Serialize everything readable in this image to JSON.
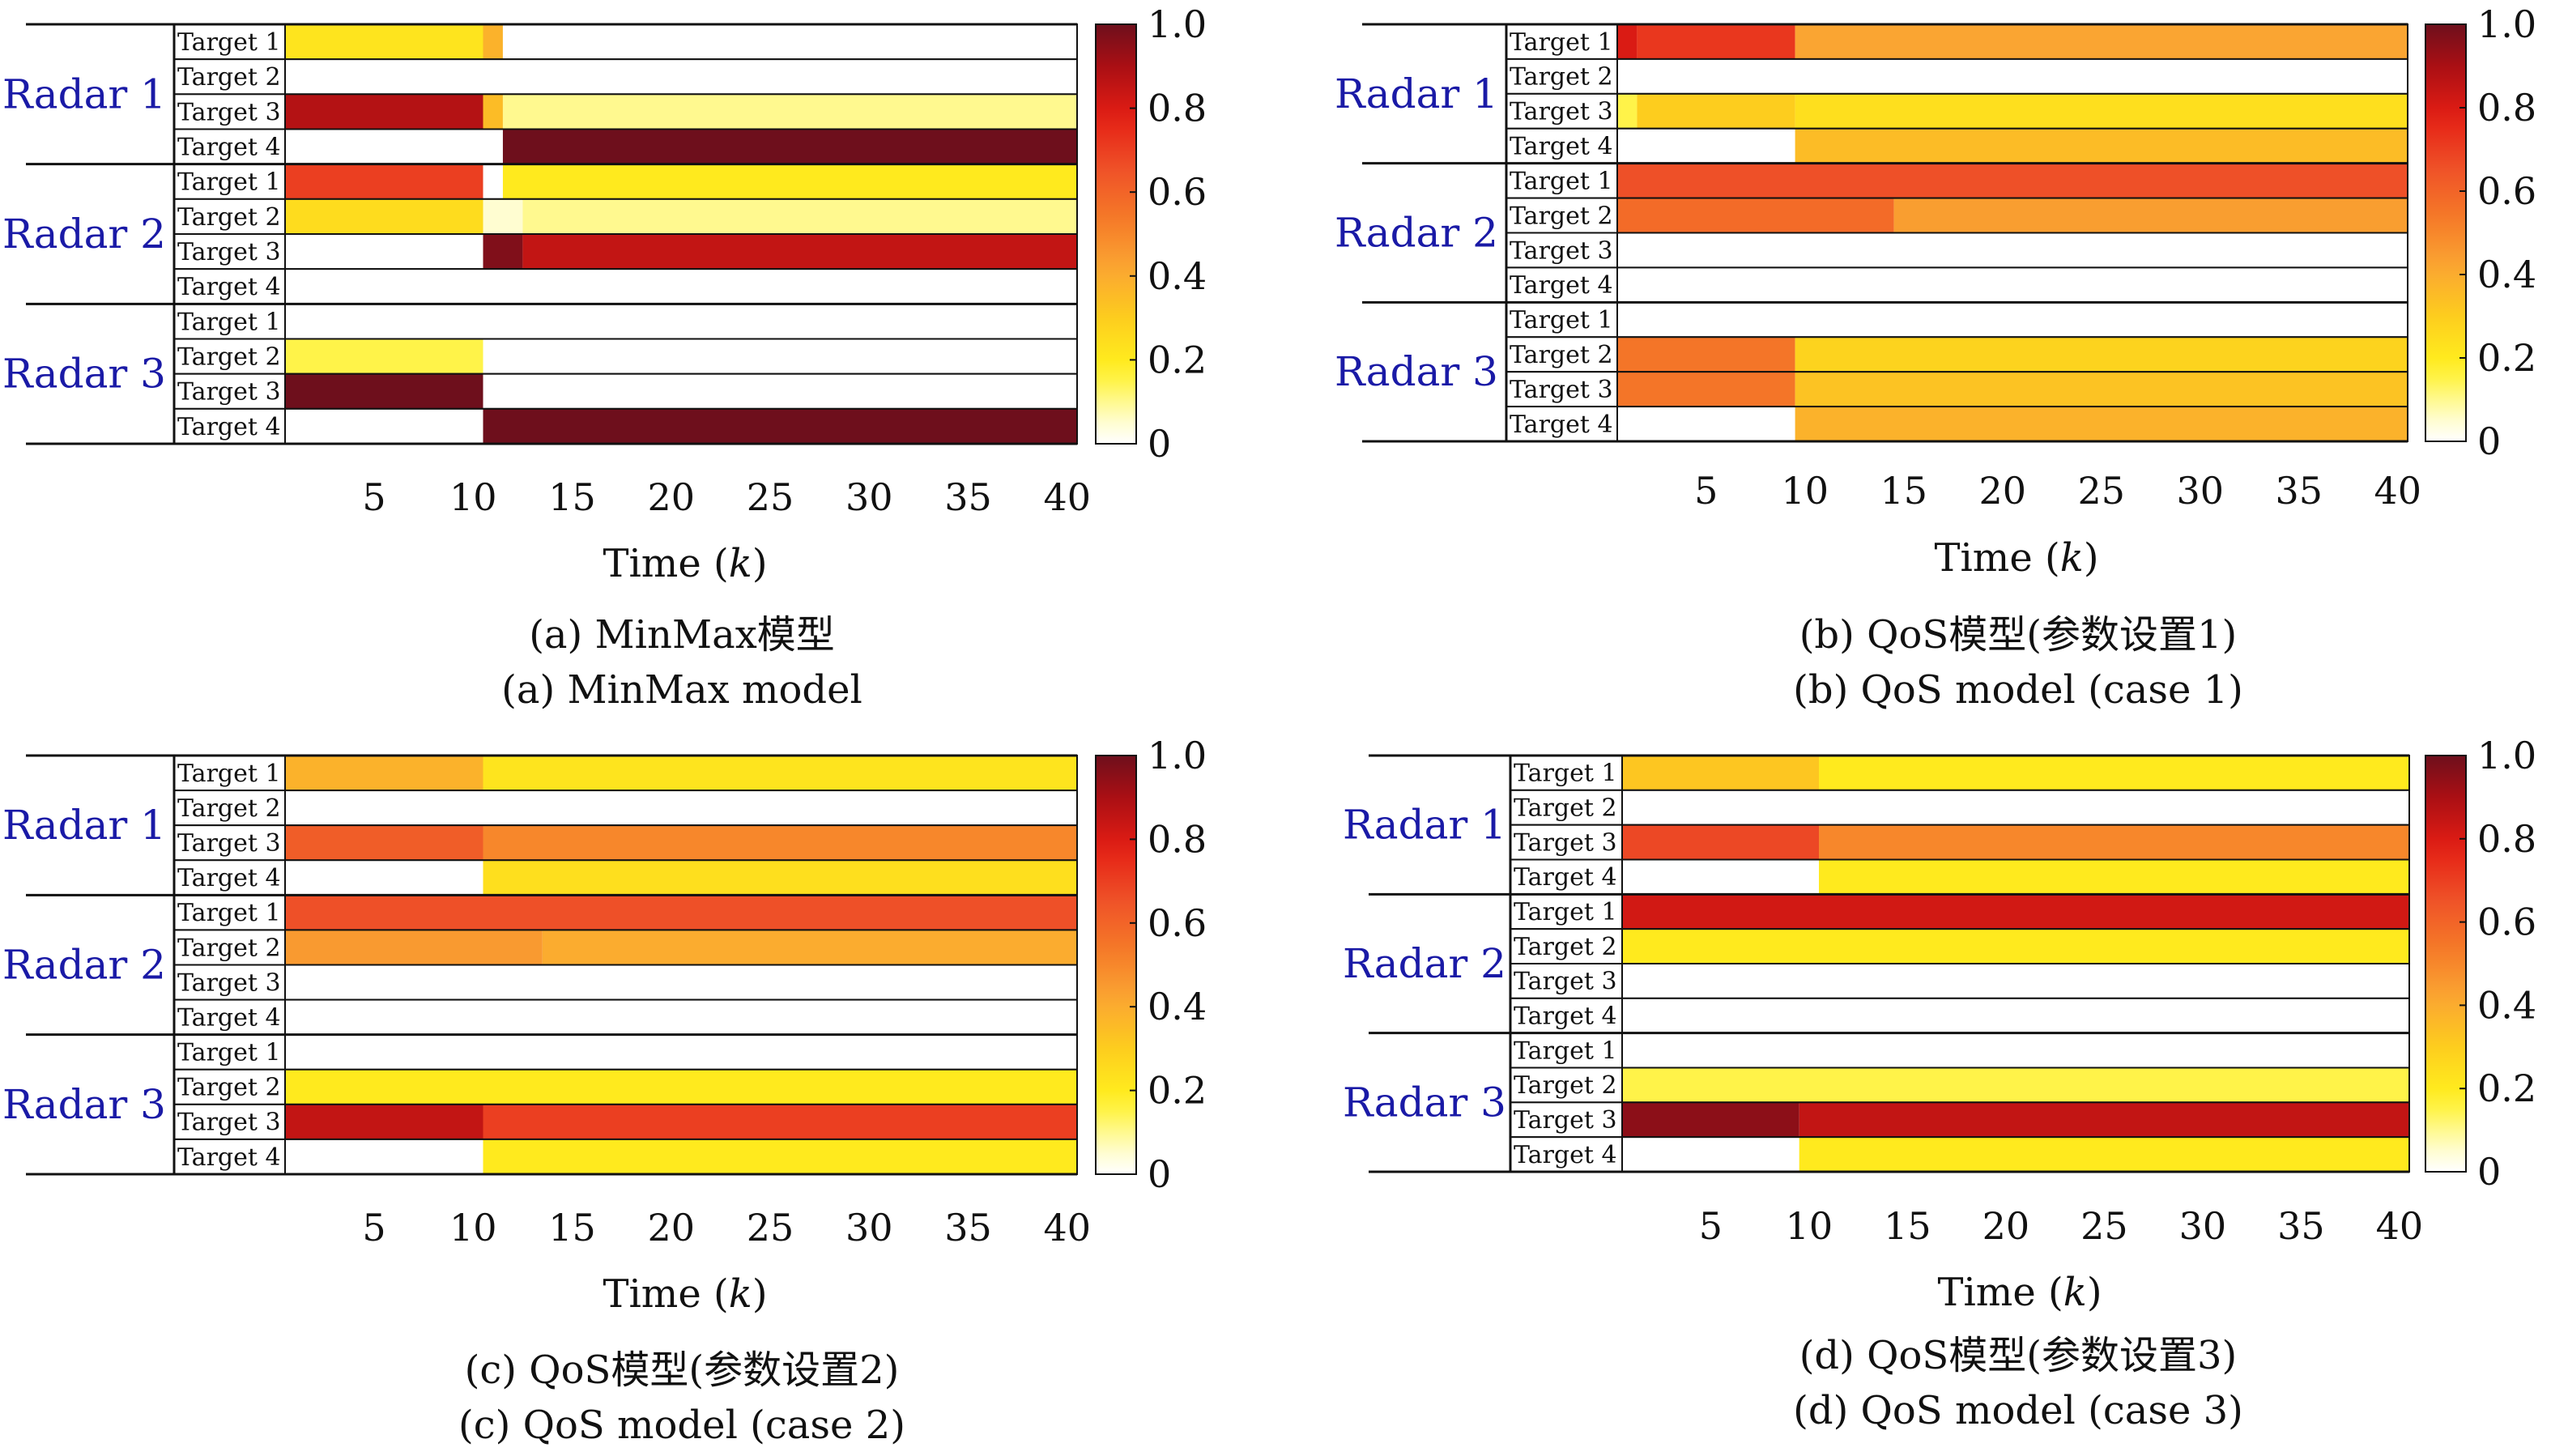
{
  "chart_data": [
    {
      "type": "heatmap",
      "id": "a",
      "caption_cn": "(a) MinMax模型",
      "caption_en": "(a) MinMax model",
      "xlabel_prefix": "Time (",
      "xlabel_var": "k",
      "xlabel_suffix": ")",
      "xlim": [
        1,
        40
      ],
      "xticks": [
        5,
        10,
        15,
        20,
        25,
        30,
        35,
        40
      ],
      "xtick_labels": [
        "5",
        "10",
        "15",
        "20",
        "25",
        "30",
        "35",
        "40"
      ],
      "colorbar": {
        "min": 0,
        "max": 1,
        "ticks": [
          "0",
          "0.2",
          "0.4",
          "0.6",
          "0.8",
          "1.0"
        ]
      },
      "radars": [
        {
          "name": "Radar 1",
          "targets": [
            {
              "name": "Target 1",
              "segments": [
                [
                  1,
                  10,
                  0.22
                ],
                [
                  11,
                  11,
                  0.38
                ],
                [
                  12,
                  40,
                  0
                ]
              ]
            },
            {
              "name": "Target 2",
              "segments": [
                [
                  1,
                  40,
                  0
                ]
              ]
            },
            {
              "name": "Target 3",
              "segments": [
                [
                  1,
                  10,
                  0.88
                ],
                [
                  11,
                  11,
                  0.35
                ],
                [
                  12,
                  40,
                  0.1
                ]
              ]
            },
            {
              "name": "Target 4",
              "segments": [
                [
                  1,
                  11,
                  0
                ],
                [
                  12,
                  40,
                  1.0
                ]
              ]
            }
          ]
        },
        {
          "name": "Radar 2",
          "targets": [
            {
              "name": "Target 1",
              "segments": [
                [
                  1,
                  10,
                  0.7
                ],
                [
                  11,
                  11,
                  0
                ],
                [
                  12,
                  40,
                  0.2
                ]
              ]
            },
            {
              "name": "Target 2",
              "segments": [
                [
                  1,
                  10,
                  0.25
                ],
                [
                  11,
                  12,
                  0.05
                ],
                [
                  13,
                  40,
                  0.1
                ]
              ]
            },
            {
              "name": "Target 3",
              "segments": [
                [
                  1,
                  10,
                  0
                ],
                [
                  11,
                  12,
                  0.97
                ],
                [
                  13,
                  40,
                  0.85
                ]
              ]
            },
            {
              "name": "Target 4",
              "segments": [
                [
                  1,
                  40,
                  0
                ]
              ]
            }
          ]
        },
        {
          "name": "Radar 3",
          "targets": [
            {
              "name": "Target 1",
              "segments": [
                [
                  1,
                  40,
                  0
                ]
              ]
            },
            {
              "name": "Target 2",
              "segments": [
                [
                  1,
                  10,
                  0.15
                ],
                [
                  11,
                  40,
                  0
                ]
              ]
            },
            {
              "name": "Target 3",
              "segments": [
                [
                  1,
                  10,
                  1.0
                ],
                [
                  11,
                  40,
                  0
                ]
              ]
            },
            {
              "name": "Target 4",
              "segments": [
                [
                  1,
                  10,
                  0
                ],
                [
                  11,
                  40,
                  1.0
                ]
              ]
            }
          ]
        }
      ]
    },
    {
      "type": "heatmap",
      "id": "b",
      "caption_cn": "(b) QoS模型(参数设置1)",
      "caption_en": "(b) QoS model (case 1)",
      "xlabel_prefix": "Time (",
      "xlabel_var": "k",
      "xlabel_suffix": ")",
      "xlim": [
        1,
        40
      ],
      "xticks": [
        5,
        10,
        15,
        20,
        25,
        30,
        35,
        40
      ],
      "xtick_labels": [
        "5",
        "10",
        "15",
        "20",
        "25",
        "30",
        "35",
        "40"
      ],
      "colorbar": {
        "min": 0,
        "max": 1,
        "ticks": [
          "0",
          "0.2",
          "0.4",
          "0.6",
          "0.8",
          "1.0"
        ]
      },
      "radars": [
        {
          "name": "Radar 1",
          "targets": [
            {
              "name": "Target 1",
              "segments": [
                [
                  1,
                  1,
                  0.8
                ],
                [
                  2,
                  9,
                  0.72
                ],
                [
                  10,
                  40,
                  0.42
                ]
              ]
            },
            {
              "name": "Target 2",
              "segments": [
                [
                  1,
                  40,
                  0
                ]
              ]
            },
            {
              "name": "Target 3",
              "segments": [
                [
                  1,
                  1,
                  0.15
                ],
                [
                  2,
                  9,
                  0.3
                ],
                [
                  10,
                  40,
                  0.24
                ]
              ]
            },
            {
              "name": "Target 4",
              "segments": [
                [
                  1,
                  9,
                  0
                ],
                [
                  10,
                  40,
                  0.35
                ]
              ]
            }
          ]
        },
        {
          "name": "Radar 2",
          "targets": [
            {
              "name": "Target 1",
              "segments": [
                [
                  1,
                  40,
                  0.66
                ]
              ]
            },
            {
              "name": "Target 2",
              "segments": [
                [
                  1,
                  14,
                  0.58
                ],
                [
                  15,
                  40,
                  0.44
                ]
              ]
            },
            {
              "name": "Target 3",
              "segments": [
                [
                  1,
                  40,
                  0
                ]
              ]
            },
            {
              "name": "Target 4",
              "segments": [
                [
                  1,
                  40,
                  0
                ]
              ]
            }
          ]
        },
        {
          "name": "Radar 3",
          "targets": [
            {
              "name": "Target 1",
              "segments": [
                [
                  1,
                  40,
                  0
                ]
              ]
            },
            {
              "name": "Target 2",
              "segments": [
                [
                  1,
                  9,
                  0.55
                ],
                [
                  10,
                  40,
                  0.28
                ]
              ]
            },
            {
              "name": "Target 3",
              "segments": [
                [
                  1,
                  9,
                  0.55
                ],
                [
                  10,
                  40,
                  0.33
                ]
              ]
            },
            {
              "name": "Target 4",
              "segments": [
                [
                  1,
                  9,
                  0
                ],
                [
                  10,
                  40,
                  0.38
                ]
              ]
            }
          ]
        }
      ]
    },
    {
      "type": "heatmap",
      "id": "c",
      "caption_cn": "(c) QoS模型(参数设置2)",
      "caption_en": "(c) QoS model (case 2)",
      "xlabel_prefix": "Time (",
      "xlabel_var": "k",
      "xlabel_suffix": ")",
      "xlim": [
        1,
        40
      ],
      "xticks": [
        5,
        10,
        15,
        20,
        25,
        30,
        35,
        40
      ],
      "xtick_labels": [
        "5",
        "10",
        "15",
        "20",
        "25",
        "30",
        "35",
        "40"
      ],
      "colorbar": {
        "min": 0,
        "max": 1,
        "ticks": [
          "0",
          "0.2",
          "0.4",
          "0.6",
          "0.8",
          "1.0"
        ]
      },
      "radars": [
        {
          "name": "Radar 1",
          "targets": [
            {
              "name": "Target 1",
              "segments": [
                [
                  1,
                  10,
                  0.38
                ],
                [
                  11,
                  40,
                  0.22
                ]
              ]
            },
            {
              "name": "Target 2",
              "segments": [
                [
                  1,
                  40,
                  0
                ]
              ]
            },
            {
              "name": "Target 3",
              "segments": [
                [
                  1,
                  10,
                  0.62
                ],
                [
                  11,
                  40,
                  0.5
                ]
              ]
            },
            {
              "name": "Target 4",
              "segments": [
                [
                  1,
                  10,
                  0
                ],
                [
                  11,
                  40,
                  0.24
                ]
              ]
            }
          ]
        },
        {
          "name": "Radar 2",
          "targets": [
            {
              "name": "Target 1",
              "segments": [
                [
                  1,
                  40,
                  0.66
                ]
              ]
            },
            {
              "name": "Target 2",
              "segments": [
                [
                  1,
                  13,
                  0.45
                ],
                [
                  14,
                  40,
                  0.4
                ]
              ]
            },
            {
              "name": "Target 3",
              "segments": [
                [
                  1,
                  40,
                  0
                ]
              ]
            },
            {
              "name": "Target 4",
              "segments": [
                [
                  1,
                  40,
                  0
                ]
              ]
            }
          ]
        },
        {
          "name": "Radar 3",
          "targets": [
            {
              "name": "Target 1",
              "segments": [
                [
                  1,
                  40,
                  0
                ]
              ]
            },
            {
              "name": "Target 2",
              "segments": [
                [
                  1,
                  40,
                  0.2
                ]
              ]
            },
            {
              "name": "Target 3",
              "segments": [
                [
                  1,
                  10,
                  0.85
                ],
                [
                  11,
                  40,
                  0.7
                ]
              ]
            },
            {
              "name": "Target 4",
              "segments": [
                [
                  1,
                  10,
                  0
                ],
                [
                  11,
                  40,
                  0.2
                ]
              ]
            }
          ]
        }
      ]
    },
    {
      "type": "heatmap",
      "id": "d",
      "caption_cn": "(d) QoS模型(参数设置3)",
      "caption_en": "(d) QoS model (case 3)",
      "xlabel_prefix": "Time (",
      "xlabel_var": "k",
      "xlabel_suffix": ")",
      "xlim": [
        1,
        40
      ],
      "xticks": [
        5,
        10,
        15,
        20,
        25,
        30,
        35,
        40
      ],
      "xtick_labels": [
        "5",
        "10",
        "15",
        "20",
        "25",
        "30",
        "35",
        "40"
      ],
      "colorbar": {
        "min": 0,
        "max": 1,
        "ticks": [
          "0",
          "0.2",
          "0.4",
          "0.6",
          "0.8",
          "1.0"
        ]
      },
      "radars": [
        {
          "name": "Radar 1",
          "targets": [
            {
              "name": "Target 1",
              "segments": [
                [
                  1,
                  10,
                  0.32
                ],
                [
                  11,
                  40,
                  0.2
                ]
              ]
            },
            {
              "name": "Target 2",
              "segments": [
                [
                  1,
                  40,
                  0
                ]
              ]
            },
            {
              "name": "Target 3",
              "segments": [
                [
                  1,
                  10,
                  0.68
                ],
                [
                  11,
                  40,
                  0.5
                ]
              ]
            },
            {
              "name": "Target 4",
              "segments": [
                [
                  1,
                  10,
                  0
                ],
                [
                  11,
                  40,
                  0.2
                ]
              ]
            }
          ]
        },
        {
          "name": "Radar 2",
          "targets": [
            {
              "name": "Target 1",
              "segments": [
                [
                  1,
                  40,
                  0.82
                ]
              ]
            },
            {
              "name": "Target 2",
              "segments": [
                [
                  1,
                  40,
                  0.2
                ]
              ]
            },
            {
              "name": "Target 3",
              "segments": [
                [
                  1,
                  40,
                  0
                ]
              ]
            },
            {
              "name": "Target 4",
              "segments": [
                [
                  1,
                  40,
                  0
                ]
              ]
            }
          ]
        },
        {
          "name": "Radar 3",
          "targets": [
            {
              "name": "Target 1",
              "segments": [
                [
                  1,
                  40,
                  0
                ]
              ]
            },
            {
              "name": "Target 2",
              "segments": [
                [
                  1,
                  40,
                  0.15
                ]
              ]
            },
            {
              "name": "Target 3",
              "segments": [
                [
                  1,
                  9,
                  0.95
                ],
                [
                  10,
                  40,
                  0.85
                ]
              ]
            },
            {
              "name": "Target 4",
              "segments": [
                [
                  1,
                  9,
                  0
                ],
                [
                  10,
                  40,
                  0.2
                ]
              ]
            }
          ]
        }
      ]
    }
  ]
}
